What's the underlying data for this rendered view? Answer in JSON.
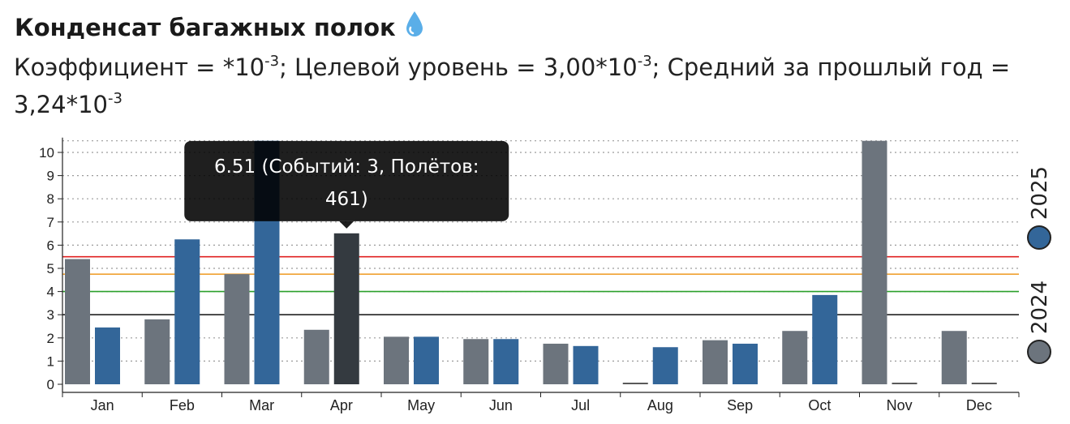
{
  "header": {
    "title": "Конденсат багажных полок",
    "title_icon": "droplet-icon",
    "subtitle_a": "Коэффициент = *10",
    "subtitle_b": "; Целевой уровень = 3,00*10",
    "subtitle_c": "; Средний за прошлый год = 3,24*10",
    "exponent": "-3"
  },
  "chart_data": {
    "type": "bar",
    "categories": [
      "Jan",
      "Feb",
      "Mar",
      "Apr",
      "May",
      "Jun",
      "Jul",
      "Aug",
      "Sep",
      "Oct",
      "Nov",
      "Dec"
    ],
    "series": [
      {
        "name": "2024",
        "color": "#6c747d",
        "values": [
          5.4,
          2.8,
          4.75,
          2.35,
          2.05,
          1.95,
          1.75,
          0,
          1.9,
          2.3,
          10.5,
          2.3
        ]
      },
      {
        "name": "2025",
        "color": "#336699",
        "values": [
          2.45,
          6.25,
          10.5,
          6.51,
          2.05,
          1.95,
          1.65,
          1.6,
          1.75,
          3.85,
          0,
          0
        ]
      }
    ],
    "ylim": [
      0,
      10.5
    ],
    "yticks": [
      0,
      1,
      2,
      3,
      4,
      5,
      6,
      7,
      8,
      9,
      10
    ],
    "grid": true,
    "reference_lines": [
      {
        "value": 5.5,
        "color": "#e02020"
      },
      {
        "value": 4.75,
        "color": "#f0a030"
      },
      {
        "value": 4.0,
        "color": "#2ca02c"
      },
      {
        "value": 3.0,
        "color": "#222222"
      }
    ],
    "legend_position": "right",
    "highlighted": {
      "series": 1,
      "index": 3,
      "color": "#343a40"
    },
    "tooltip": {
      "line1": "6.51 (Событий: 3, Полётов:",
      "line2": "461)"
    }
  }
}
